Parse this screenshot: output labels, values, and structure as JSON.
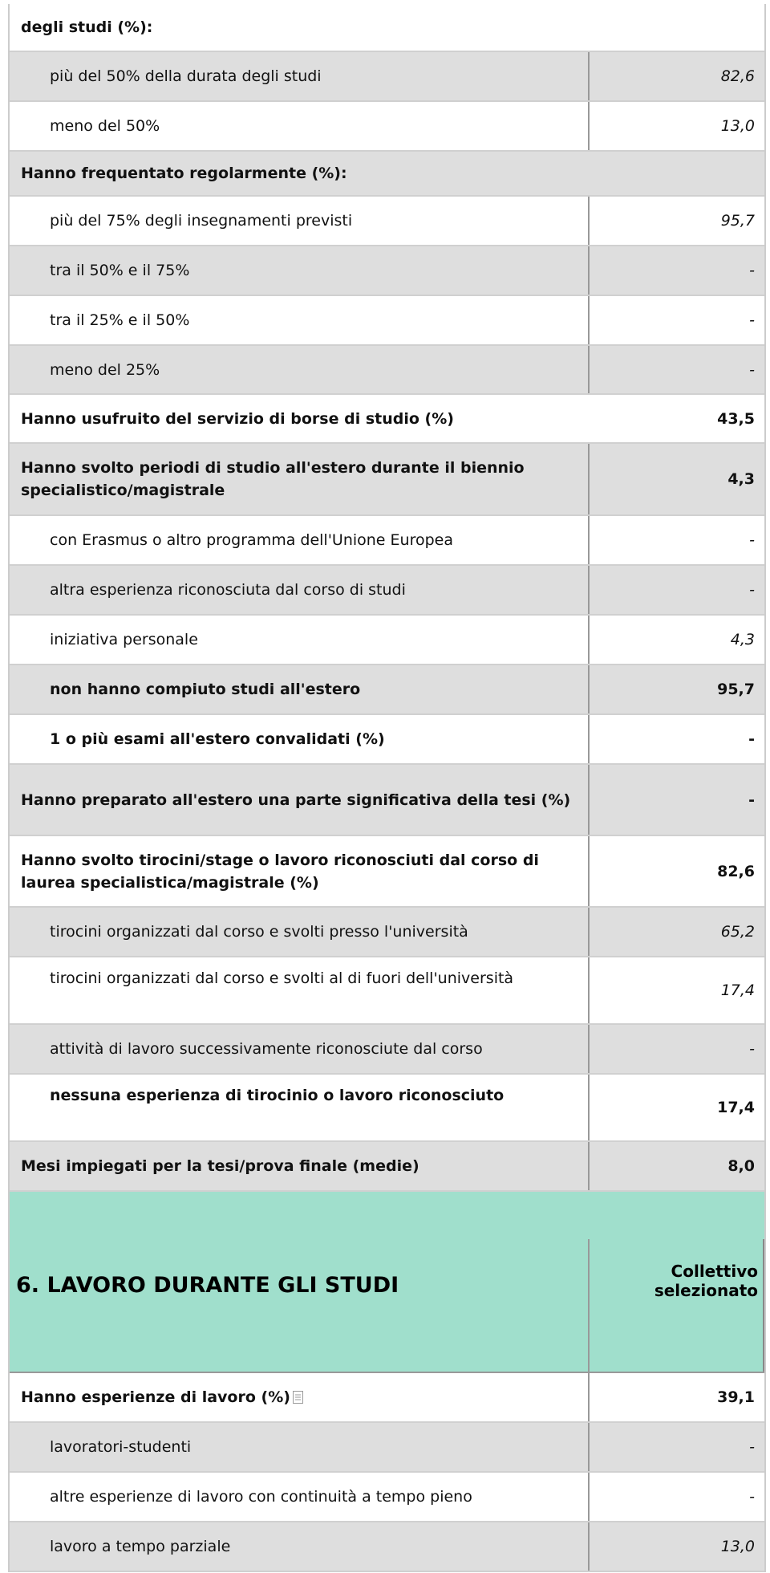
{
  "rows_before": [
    {
      "label": "degli studi (%):"
    },
    {
      "label": "più del 50% della durata degli studi",
      "value": "82,6"
    },
    {
      "label": "meno del 50%",
      "value": "13,0"
    },
    {
      "label": "Hanno frequentato regolarmente (%):"
    },
    {
      "label": "più del 75% degli insegnamenti previsti",
      "value": "95,7"
    },
    {
      "label": "tra il 50% e il 75%",
      "value": "-"
    },
    {
      "label": "tra il 25% e il 50%",
      "value": "-"
    },
    {
      "label": "meno del 25%",
      "value": "-"
    },
    {
      "label": "Hanno usufruito del servizio di borse di studio (%)",
      "value": "43,5"
    },
    {
      "label": "Hanno svolto periodi di studio all'estero durante il biennio specialistico/magistrale",
      "value": "4,3"
    },
    {
      "label": "con Erasmus o altro programma dell'Unione Europea",
      "value": "-"
    },
    {
      "label": "altra esperienza riconosciuta dal corso di studi",
      "value": "-"
    },
    {
      "label": "iniziativa personale",
      "value": "4,3"
    },
    {
      "label": "non hanno compiuto studi all'estero",
      "value": "95,7"
    },
    {
      "label": "1 o più esami all'estero convalidati (%)",
      "value": "-"
    },
    {
      "label": "Hanno preparato all'estero una parte significativa della tesi (%)",
      "value": "-"
    },
    {
      "label": "Hanno svolto tirocini/stage o lavoro riconosciuti dal corso di laurea specialistica/magistrale (%)",
      "value": "82,6"
    },
    {
      "label": "tirocini organizzati dal corso e svolti presso l'università",
      "value": "65,2"
    },
    {
      "label": "tirocini organizzati dal corso e svolti al di fuori dell'università",
      "value": "17,4"
    },
    {
      "label": "attività di lavoro successivamente riconosciute dal corso",
      "value": "-"
    },
    {
      "label": "nessuna esperienza di tirocinio o lavoro riconosciuto",
      "value": "17,4"
    },
    {
      "label": "Mesi impiegati per la tesi/prova finale (medie)",
      "value": "8,0"
    }
  ],
  "section": {
    "title": "6. LAVORO DURANTE GLI STUDI",
    "column_header": "Collettivo selezionato"
  },
  "rows_after": [
    {
      "label": "Hanno esperienze di lavoro (%)",
      "value": "39,1"
    },
    {
      "label": "lavoratori-studenti",
      "value": "-"
    },
    {
      "label": "altre esperienze di lavoro con continuità a tempo pieno",
      "value": "-"
    },
    {
      "label": "lavoro a tempo parziale",
      "value": "13,0"
    }
  ]
}
